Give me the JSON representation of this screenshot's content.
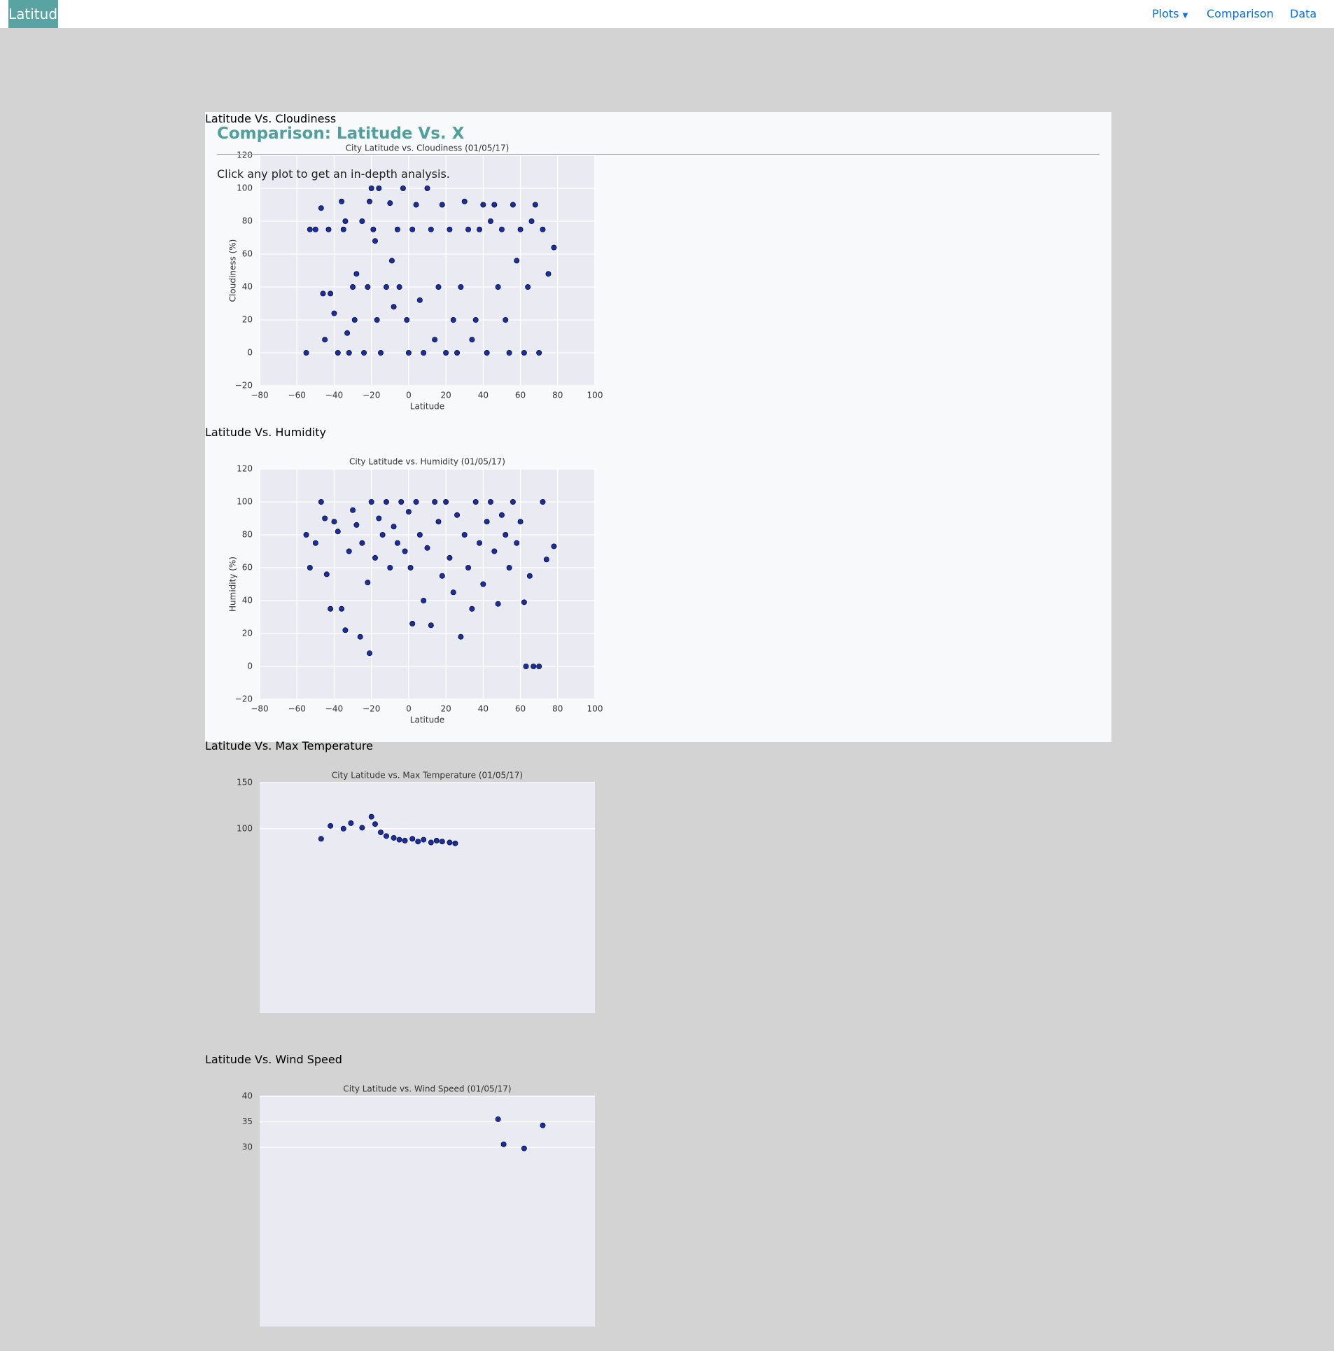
{
  "navbar": {
    "brand": "Latitude",
    "links": [
      "Plots",
      "Comparison",
      "Data"
    ]
  },
  "card": {
    "title": "Comparison: Latitude Vs. X",
    "description": "Click any plot to get an in-depth analysis."
  },
  "plots": [
    {
      "heading": "Latitude Vs. Cloudiness",
      "chart_data": {
        "type": "scatter",
        "title": "City Latitude vs. Cloudiness (01/05/17)",
        "x_label": "Latitude",
        "y_label": "Cloudiness (%)",
        "color": "#1a2f9e",
        "grid": true,
        "xlim": [
          -80,
          100
        ],
        "ylim": [
          -20,
          120
        ],
        "xticks": [
          {
            "value": -80,
            "label": "−80"
          },
          {
            "value": -60,
            "label": "−60"
          },
          {
            "value": -40,
            "label": "−40"
          },
          {
            "value": -20,
            "label": "−20"
          },
          0,
          20,
          40,
          60,
          80,
          100
        ],
        "yticks": [
          {
            "value": -20,
            "label": "−20"
          },
          0,
          20,
          40,
          60,
          80,
          100,
          120
        ],
        "x": [
          -55,
          -53,
          -50,
          -47,
          -46,
          -45,
          -43,
          -42,
          -40,
          -38,
          -36,
          -35,
          -34,
          -33,
          -32,
          -30,
          -29,
          -28,
          -25,
          -24,
          -22,
          -21,
          -20,
          -19,
          -18,
          -17,
          -16,
          -15,
          -12,
          -10,
          -9,
          -8,
          -6,
          -5,
          -3,
          -1,
          0,
          2,
          4,
          6,
          8,
          10,
          12,
          14,
          16,
          18,
          20,
          22,
          24,
          26,
          28,
          30,
          32,
          34,
          36,
          38,
          40,
          42,
          44,
          46,
          48,
          50,
          52,
          54,
          56,
          58,
          60,
          62,
          64,
          66,
          68,
          70,
          72,
          75,
          78
        ],
        "values": [
          0,
          75,
          75,
          88,
          36,
          8,
          75,
          36,
          24,
          0,
          92,
          75,
          80,
          12,
          0,
          40,
          20,
          48,
          80,
          0,
          40,
          92,
          100,
          75,
          68,
          20,
          100,
          0,
          40,
          91,
          56,
          28,
          75,
          40,
          100,
          20,
          0,
          75,
          90,
          32,
          0,
          100,
          75,
          8,
          40,
          90,
          0,
          75,
          20,
          0,
          40,
          92,
          75,
          8,
          20,
          75,
          90,
          0,
          80,
          90,
          40,
          75,
          20,
          0,
          90,
          56,
          75,
          0,
          40,
          80,
          90,
          0,
          75,
          48,
          64
        ]
      }
    },
    {
      "heading": "Latitude Vs. Humidity",
      "chart_data": {
        "type": "scatter",
        "title": "City Latitude vs. Humidity (01/05/17)",
        "x_label": "Latitude",
        "y_label": "Humidity (%)",
        "color": "#1a2f9e",
        "grid": true,
        "xlim": [
          -80,
          100
        ],
        "ylim": [
          -20,
          120
        ],
        "xticks": [
          {
            "value": -80,
            "label": "−80"
          },
          {
            "value": -60,
            "label": "−60"
          },
          {
            "value": -40,
            "label": "−40"
          },
          {
            "value": -20,
            "label": "−20"
          },
          0,
          20,
          40,
          60,
          80,
          100
        ],
        "yticks": [
          {
            "value": -20,
            "label": "−20"
          },
          0,
          20,
          40,
          60,
          80,
          100,
          120
        ],
        "x": [
          -55,
          -53,
          -50,
          -47,
          -45,
          -44,
          -42,
          -40,
          -38,
          -36,
          -34,
          -32,
          -30,
          -28,
          -26,
          -25,
          -22,
          -21,
          -20,
          -18,
          -16,
          -14,
          -12,
          -10,
          -8,
          -6,
          -4,
          -2,
          0,
          1,
          2,
          4,
          6,
          8,
          10,
          12,
          14,
          16,
          18,
          20,
          22,
          24,
          26,
          28,
          30,
          32,
          34,
          36,
          38,
          40,
          42,
          44,
          46,
          48,
          50,
          52,
          54,
          56,
          58,
          60,
          62,
          63,
          65,
          67,
          70,
          72,
          74,
          78
        ],
        "values": [
          80,
          60,
          75,
          100,
          90,
          56,
          35,
          88,
          82,
          35,
          22,
          70,
          95,
          86,
          18,
          75,
          51,
          8,
          100,
          66,
          90,
          80,
          100,
          60,
          85,
          75,
          100,
          70,
          94,
          60,
          26,
          100,
          80,
          40,
          72,
          25,
          100,
          88,
          55,
          100,
          66,
          45,
          92,
          18,
          80,
          60,
          35,
          100,
          75,
          50,
          88,
          100,
          70,
          38,
          92,
          80,
          60,
          100,
          75,
          88,
          39,
          0,
          55,
          0,
          0,
          100,
          65,
          73
        ]
      }
    },
    {
      "heading": "Latitude Vs. Max Temperature",
      "chart_data": {
        "type": "scatter",
        "title": "City Latitude vs. Max Temperature (01/05/17)",
        "color": "#1a2f9e",
        "grid": true,
        "xlim": [
          -80,
          100
        ],
        "ylim": [
          -100,
          150
        ],
        "yticks": [
          150,
          100
        ],
        "x": [
          -47,
          -42,
          -35,
          -31,
          -25,
          -20,
          -18,
          -15,
          -12,
          -8,
          -5,
          -2,
          2,
          5,
          8,
          12,
          15,
          18,
          22,
          25
        ],
        "values": [
          89,
          103,
          100,
          106,
          101,
          113,
          105,
          96,
          92,
          90,
          88,
          87,
          89,
          86,
          88,
          85,
          87,
          86,
          85,
          84
        ]
      }
    },
    {
      "heading": "Latitude Vs. Wind Speed",
      "chart_data": {
        "type": "scatter",
        "title": "City Latitude vs. Wind Speed (01/05/17)",
        "color": "#1a2f9e",
        "grid": true,
        "xlim": [
          -80,
          100
        ],
        "ylim": [
          -5,
          40
        ],
        "yticks": [
          40,
          35,
          30
        ],
        "x": [
          48,
          51,
          62,
          72
        ],
        "values": [
          35.5,
          30.6,
          29.8,
          34.3
        ]
      }
    }
  ]
}
